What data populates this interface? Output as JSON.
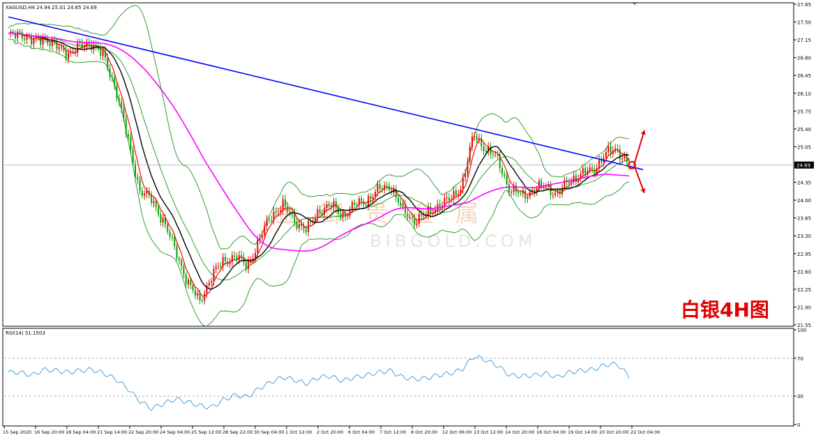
{
  "symbol_header": "XAGUSD,H4  24.94 25.01 24.65 24.69",
  "current_price_label": "24.69",
  "annotation": "白银4H图",
  "watermark": {
    "chinese": "金 御 贵 金 属",
    "latin": "BIBGOLD.COM"
  },
  "colors": {
    "bull": "#e00000",
    "bear": "#00a000",
    "ma_fast": "#ff0000",
    "ma_mid": "#000000",
    "ma_slow": "#ff00ff",
    "bands": "#2e9e2e",
    "trendline": "#0000ff",
    "rsi": "#4aa0e0",
    "annotation": "#e00000"
  },
  "chart_data": [
    {
      "type": "candlestick",
      "title": "XAGUSD,H4",
      "ohlc_header": {
        "open": 24.94,
        "high": 25.01,
        "low": 24.65,
        "close": 24.69
      },
      "ylim": [
        21.55,
        27.85
      ],
      "y_ticks": [
        "27.85",
        "27.50",
        "27.15",
        "26.80",
        "26.45",
        "26.10",
        "25.75",
        "25.40",
        "25.05",
        "24.69",
        "24.35",
        "24.00",
        "23.65",
        "23.30",
        "22.95",
        "22.60",
        "22.25",
        "21.90",
        "21.55"
      ],
      "x_ticks": [
        "15 Sep 2020",
        "16 Sep 20:00",
        "18 Sep 04:00",
        "21 Sep 14:00",
        "22 Sep 20:00",
        "24 Sep 04:00",
        "25 Sep 12:00",
        "28 Sep 22:00",
        "30 Sep 04:00",
        "1 Oct 12:00",
        "2 Oct 20:00",
        "6 Oct 04:00",
        "7 Oct 12:00",
        "8 Oct 20:00",
        "12 Oct 06:00",
        "13 Oct 12:00",
        "14 Oct 20:00",
        "16 Oct 04:00",
        "19 Oct 14:00",
        "20 Oct 20:00",
        "22 Oct 04:00"
      ],
      "close_path": [
        27.2,
        27.3,
        27.1,
        27.2,
        27.0,
        26.9,
        27.0,
        27.1,
        26.8,
        26.2,
        25.2,
        24.2,
        24.0,
        23.6,
        23.0,
        22.4,
        22.0,
        22.5,
        22.8,
        22.9,
        22.7,
        23.2,
        23.7,
        23.9,
        23.6,
        23.4,
        23.8,
        23.9,
        23.7,
        23.9,
        24.0,
        24.2,
        24.3,
        23.8,
        23.6,
        23.7,
        23.9,
        24.0,
        24.3,
        25.3,
        25.0,
        24.8,
        24.2,
        24.1,
        24.2,
        24.3,
        24.1,
        24.4,
        24.5,
        24.6,
        24.9,
        25.0,
        24.69
      ],
      "current_price": 24.69,
      "trendline": {
        "from": 27.6,
        "to": 24.6
      },
      "projections": [
        "up",
        "down"
      ]
    },
    {
      "type": "line",
      "title": "RSI(14) 51.1503",
      "ylim": [
        0,
        100
      ],
      "y_ticks": [
        "100",
        "70",
        "30",
        "0"
      ],
      "levels": [
        70,
        30
      ],
      "values": [
        55,
        55,
        52,
        58,
        57,
        55,
        57,
        58,
        54,
        48,
        38,
        25,
        17,
        22,
        27,
        24,
        20,
        18,
        26,
        31,
        29,
        38,
        45,
        50,
        47,
        43,
        50,
        51,
        46,
        50,
        52,
        55,
        57,
        50,
        48,
        49,
        52,
        54,
        58,
        72,
        68,
        62,
        52,
        51,
        52,
        54,
        50,
        55,
        57,
        58,
        63,
        64,
        51
      ]
    }
  ]
}
